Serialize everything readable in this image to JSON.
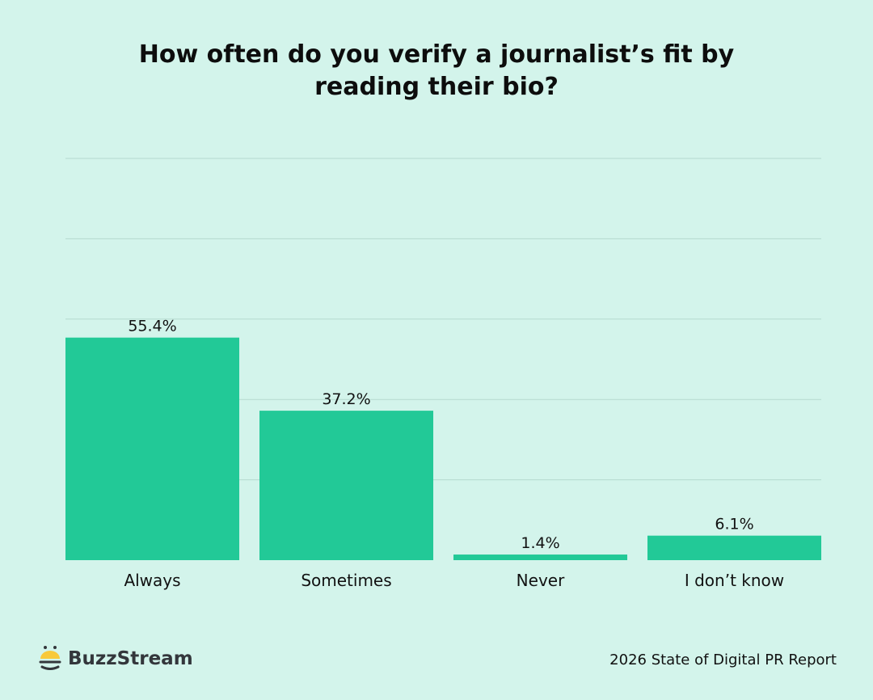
{
  "chart_data": {
    "type": "bar",
    "title": "How often do you verify a journalist’s fit by reading their bio?",
    "categories": [
      "Always",
      "Sometimes",
      "Never",
      "I don’t know"
    ],
    "values": [
      55.4,
      37.2,
      1.4,
      6.1
    ],
    "data_labels": [
      "55.4%",
      "37.2%",
      "1.4%",
      "6.1%"
    ],
    "xlabel": "",
    "ylabel": "",
    "ylim": [
      0,
      100
    ],
    "grid": true,
    "gridlines": [
      20,
      40,
      60,
      80,
      100
    ],
    "bar_color": "#22c997"
  },
  "brand": {
    "name": "BuzzStream",
    "colors": {
      "yellow": "#f8c93a",
      "dark": "#33363b"
    }
  },
  "footer": {
    "source": "2026 State of Digital PR Report"
  }
}
